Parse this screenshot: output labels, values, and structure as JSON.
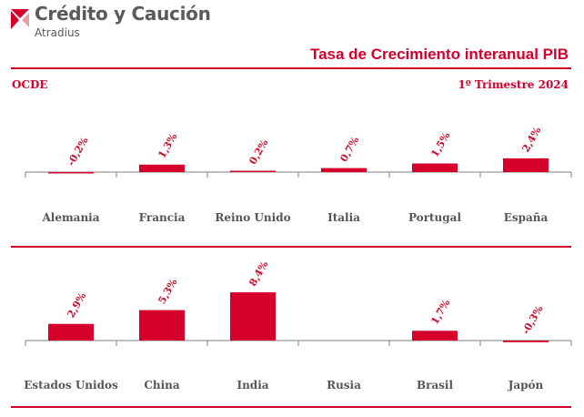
{
  "header": {
    "brand_name": "Crédito y Caución",
    "brand_sub": "Atradius",
    "title": "Tasa de  Crecimiento interanual PIB",
    "region": "OCDE",
    "period": "1º Trimestre 2024"
  },
  "colors": {
    "accent": "#d4002b",
    "bar": "#d4002b",
    "axis": "#7f7f7f",
    "category_text": "#555555"
  },
  "chart_data": [
    {
      "type": "bar",
      "categories": [
        "Alemania",
        "Francia",
        "Reino Unido",
        "Italia",
        "Portugal",
        "España"
      ],
      "values": [
        -0.2,
        1.3,
        0.2,
        0.7,
        1.5,
        2.4
      ],
      "labels": [
        "-0,2%",
        "1,3%",
        "0,2%",
        "0,7%",
        "1,5%",
        "2,4%"
      ],
      "title": "",
      "xlabel": "",
      "ylabel": "",
      "ylim": [
        -0.3,
        8.4
      ],
      "grid": false
    },
    {
      "type": "bar",
      "categories": [
        "Estados Unidos",
        "China",
        "India",
        "Rusia",
        "Brasil",
        "Japón"
      ],
      "values": [
        2.9,
        5.3,
        8.4,
        null,
        1.7,
        -0.3
      ],
      "labels": [
        "2,9%",
        "5,3%",
        "8,4%",
        "",
        "1,7%",
        "-0,3%"
      ],
      "title": "",
      "xlabel": "",
      "ylabel": "",
      "ylim": [
        -0.3,
        8.4
      ],
      "grid": false
    }
  ]
}
